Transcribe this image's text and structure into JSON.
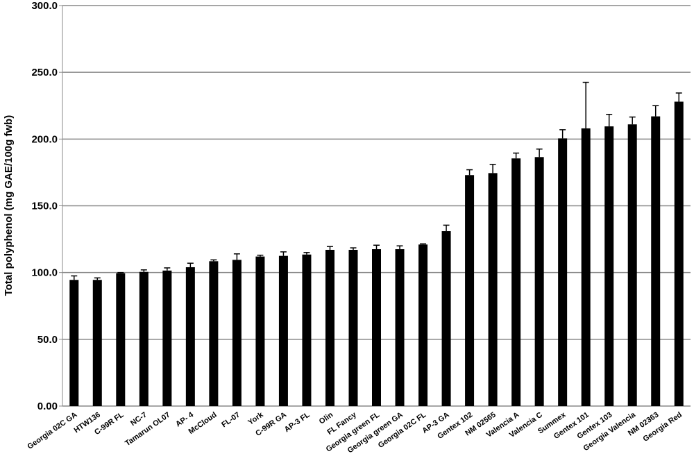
{
  "chart_data": {
    "type": "bar",
    "title": "",
    "xlabel": "",
    "ylabel": "Total polyphenol (mg GAE/100g  fwb)",
    "ylim": [
      0,
      300
    ],
    "yticks": [
      "0.00",
      "50.0",
      "100.0",
      "150.0",
      "200.0",
      "250.0",
      "300.0"
    ],
    "grid": true,
    "legend": "none",
    "bar_color": "#000000",
    "grid_color": "#888888",
    "categories": [
      "Georgia 02C GA",
      "HTW136",
      "C-99R FL",
      "NC-7",
      "Tamarun OL07",
      "AP- 4",
      "McCloud",
      "FL-07",
      "York",
      "C-99R GA",
      "AP-3 FL",
      "Olin",
      "FL Fancy",
      "Georgia green FL",
      "Georgia green GA",
      "Georgia 02C FL",
      "AP-3 GA",
      "Gentex 102",
      "NM 02565",
      "Valencia A",
      "Valencia C",
      "Summex",
      "Gentex 101",
      "Gentex 103",
      "Georgia Valencia",
      "NM 02363",
      "Georgia Red"
    ],
    "values": [
      94.5,
      94.5,
      99.5,
      100.5,
      101.5,
      104,
      108.5,
      109.5,
      112,
      112.5,
      113.5,
      117,
      117,
      117.5,
      117.5,
      121,
      131,
      173,
      174.5,
      185.5,
      186.5,
      200.5,
      208,
      209.5,
      211,
      217,
      228
    ],
    "errors": [
      3,
      1.5,
      0.5,
      1.5,
      2,
      3,
      1,
      4.5,
      1,
      3,
      1.5,
      2.5,
      1.5,
      3,
      2.5,
      0.5,
      4.5,
      4,
      6.5,
      4,
      6,
      6.5,
      34.5,
      9,
      5.5,
      8,
      6.5
    ]
  }
}
